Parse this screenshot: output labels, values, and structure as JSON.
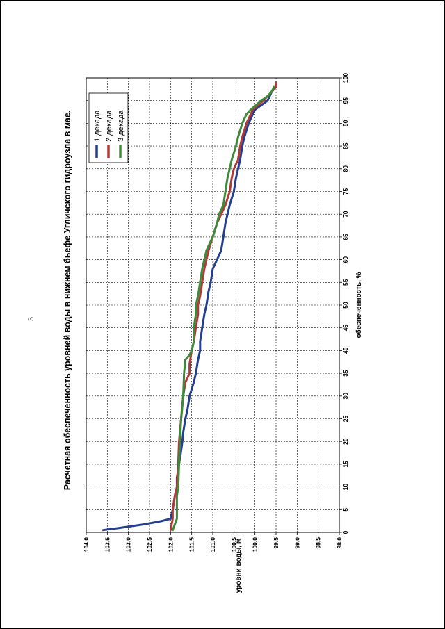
{
  "page": {
    "number": "3"
  },
  "chart_data": {
    "type": "line",
    "title": "Расчетная обеспеченность уровней воды в нижнем бьефе Угличского гидроузла в мае.",
    "xlabel": "обеспеченность, %",
    "ylabel": "уровни воды, м",
    "xlim": [
      0,
      100
    ],
    "ylim": [
      98.0,
      104.0
    ],
    "x_ticks": [
      "0",
      "5",
      "10",
      "15",
      "20",
      "25",
      "30",
      "35",
      "40",
      "45",
      "50",
      "55",
      "60",
      "65",
      "70",
      "75",
      "80",
      "85",
      "90",
      "95",
      "100"
    ],
    "y_ticks": [
      "98.0",
      "98.5",
      "99.0",
      "99.5",
      "100.0",
      "100.5",
      "101.0",
      "101.5",
      "102.0",
      "102.5",
      "103.0",
      "103.5",
      "104.0"
    ],
    "grid": true,
    "legend": "top-right",
    "series": [
      {
        "name": "1 декада",
        "color": "#243f8f",
        "points": [
          [
            0.5,
            103.6
          ],
          [
            1,
            103.2
          ],
          [
            1.8,
            102.6
          ],
          [
            2.5,
            102.2
          ],
          [
            3,
            102.0
          ],
          [
            5,
            101.95
          ],
          [
            8,
            101.9
          ],
          [
            10,
            101.85
          ],
          [
            12,
            101.85
          ],
          [
            15,
            101.8
          ],
          [
            18,
            101.75
          ],
          [
            20,
            101.72
          ],
          [
            22,
            101.7
          ],
          [
            25,
            101.65
          ],
          [
            27,
            101.6
          ],
          [
            30,
            101.55
          ],
          [
            33,
            101.45
          ],
          [
            35,
            101.4
          ],
          [
            38,
            101.35
          ],
          [
            40,
            101.3
          ],
          [
            42,
            101.3
          ],
          [
            45,
            101.25
          ],
          [
            48,
            101.2
          ],
          [
            50,
            101.15
          ],
          [
            53,
            101.1
          ],
          [
            55,
            101.05
          ],
          [
            58,
            101.0
          ],
          [
            60,
            100.9
          ],
          [
            62,
            100.8
          ],
          [
            65,
            100.75
          ],
          [
            68,
            100.7
          ],
          [
            70,
            100.65
          ],
          [
            72,
            100.6
          ],
          [
            75,
            100.5
          ],
          [
            78,
            100.45
          ],
          [
            80,
            100.4
          ],
          [
            82,
            100.35
          ],
          [
            85,
            100.3
          ],
          [
            87,
            100.25
          ],
          [
            90,
            100.15
          ],
          [
            92,
            100.05
          ],
          [
            93,
            100.0
          ],
          [
            95,
            99.7
          ],
          [
            96,
            99.65
          ],
          [
            97,
            99.6
          ],
          [
            98,
            99.5
          ]
        ]
      },
      {
        "name": "2 декада",
        "color": "#b03a3a",
        "points": [
          [
            0.5,
            102.0
          ],
          [
            3,
            101.95
          ],
          [
            5,
            101.95
          ],
          [
            8,
            101.9
          ],
          [
            10,
            101.85
          ],
          [
            15,
            101.82
          ],
          [
            20,
            101.8
          ],
          [
            25,
            101.75
          ],
          [
            30,
            101.7
          ],
          [
            33,
            101.65
          ],
          [
            34,
            101.6
          ],
          [
            35,
            101.55
          ],
          [
            37,
            101.55
          ],
          [
            40,
            101.5
          ],
          [
            42,
            101.45
          ],
          [
            45,
            101.4
          ],
          [
            48,
            101.35
          ],
          [
            50,
            101.35
          ],
          [
            52,
            101.3
          ],
          [
            55,
            101.25
          ],
          [
            58,
            101.2
          ],
          [
            60,
            101.15
          ],
          [
            62,
            101.1
          ],
          [
            65,
            101.0
          ],
          [
            68,
            100.9
          ],
          [
            70,
            100.8
          ],
          [
            72,
            100.7
          ],
          [
            75,
            100.6
          ],
          [
            78,
            100.55
          ],
          [
            80,
            100.5
          ],
          [
            82,
            100.4
          ],
          [
            85,
            100.35
          ],
          [
            87,
            100.3
          ],
          [
            90,
            100.2
          ],
          [
            92,
            100.1
          ],
          [
            93,
            100.05
          ],
          [
            95,
            99.8
          ],
          [
            96,
            99.7
          ],
          [
            97,
            99.6
          ],
          [
            98,
            99.5
          ],
          [
            99,
            99.5
          ]
        ]
      },
      {
        "name": "3 декада",
        "color": "#3f8a3a",
        "points": [
          [
            0.5,
            101.95
          ],
          [
            3,
            101.85
          ],
          [
            5,
            101.85
          ],
          [
            8,
            101.85
          ],
          [
            10,
            101.82
          ],
          [
            15,
            101.8
          ],
          [
            20,
            101.78
          ],
          [
            25,
            101.75
          ],
          [
            30,
            101.7
          ],
          [
            35,
            101.68
          ],
          [
            38,
            101.65
          ],
          [
            39,
            101.55
          ],
          [
            40,
            101.5
          ],
          [
            42,
            101.45
          ],
          [
            45,
            101.45
          ],
          [
            48,
            101.4
          ],
          [
            50,
            101.4
          ],
          [
            52,
            101.35
          ],
          [
            55,
            101.3
          ],
          [
            58,
            101.25
          ],
          [
            60,
            101.2
          ],
          [
            62,
            101.15
          ],
          [
            65,
            101.0
          ],
          [
            68,
            100.9
          ],
          [
            70,
            100.85
          ],
          [
            72,
            100.75
          ],
          [
            75,
            100.7
          ],
          [
            78,
            100.65
          ],
          [
            80,
            100.6
          ],
          [
            82,
            100.55
          ],
          [
            85,
            100.45
          ],
          [
            87,
            100.4
          ],
          [
            90,
            100.3
          ],
          [
            92,
            100.2
          ],
          [
            93,
            100.1
          ],
          [
            95,
            99.85
          ],
          [
            96,
            99.7
          ],
          [
            97,
            99.6
          ],
          [
            98,
            99.55
          ]
        ]
      }
    ]
  }
}
